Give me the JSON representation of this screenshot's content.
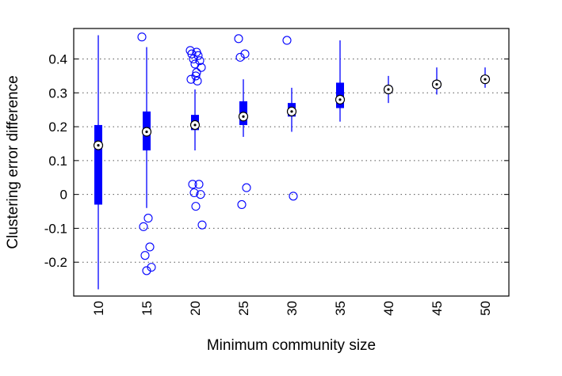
{
  "chart_data": {
    "type": "box",
    "xlabel": "Minimum community size",
    "ylabel": "Clustering error difference",
    "ylim": [
      -0.3,
      0.49
    ],
    "yticks": [
      -0.2,
      -0.1,
      0,
      0.1,
      0.2,
      0.3,
      0.4
    ],
    "ytick_labels": [
      "-0.2",
      "-0.1",
      "0",
      "0.1",
      "0.2",
      "0.3",
      "0.4"
    ],
    "grid": "horizontal-dotted",
    "color": "#0000ff",
    "categories": [
      "10",
      "15",
      "20",
      "25",
      "30",
      "35",
      "40",
      "45",
      "50"
    ],
    "boxes": [
      {
        "category": "10",
        "whisker_low": -0.28,
        "q1": -0.03,
        "median": 0.145,
        "q3": 0.205,
        "whisker_high": 0.47,
        "outliers": []
      },
      {
        "category": "15",
        "whisker_low": -0.04,
        "q1": 0.13,
        "median": 0.185,
        "q3": 0.245,
        "whisker_high": 0.435,
        "outliers": [
          0.465,
          -0.07,
          -0.095,
          -0.155,
          -0.18,
          -0.215,
          -0.225
        ]
      },
      {
        "category": "20",
        "whisker_low": 0.13,
        "q1": 0.19,
        "median": 0.205,
        "q3": 0.235,
        "whisker_high": 0.31,
        "outliers": [
          0.425,
          0.42,
          0.415,
          0.41,
          0.4,
          0.395,
          0.385,
          0.375,
          0.36,
          0.35,
          0.34,
          0.335,
          0.03,
          0.03,
          0.005,
          0.0,
          -0.035,
          -0.09
        ]
      },
      {
        "category": "25",
        "whisker_low": 0.17,
        "q1": 0.205,
        "median": 0.23,
        "q3": 0.275,
        "whisker_high": 0.34,
        "outliers": [
          0.46,
          0.415,
          0.405,
          0.02,
          -0.03
        ]
      },
      {
        "category": "30",
        "whisker_low": 0.185,
        "q1": 0.23,
        "median": 0.245,
        "q3": 0.27,
        "whisker_high": 0.315,
        "outliers": [
          0.455,
          -0.005
        ]
      },
      {
        "category": "35",
        "whisker_low": 0.215,
        "q1": 0.255,
        "median": 0.28,
        "q3": 0.33,
        "whisker_high": 0.455,
        "outliers": []
      },
      {
        "category": "40",
        "whisker_low": 0.27,
        "q1": 0.3,
        "median": 0.31,
        "q3": 0.32,
        "whisker_high": 0.35,
        "outliers": []
      },
      {
        "category": "45",
        "whisker_low": 0.295,
        "q1": 0.315,
        "median": 0.325,
        "q3": 0.335,
        "whisker_high": 0.375,
        "outliers": []
      },
      {
        "category": "50",
        "whisker_low": 0.315,
        "q1": 0.335,
        "median": 0.34,
        "q3": 0.35,
        "whisker_high": 0.375,
        "outliers": []
      }
    ]
  }
}
